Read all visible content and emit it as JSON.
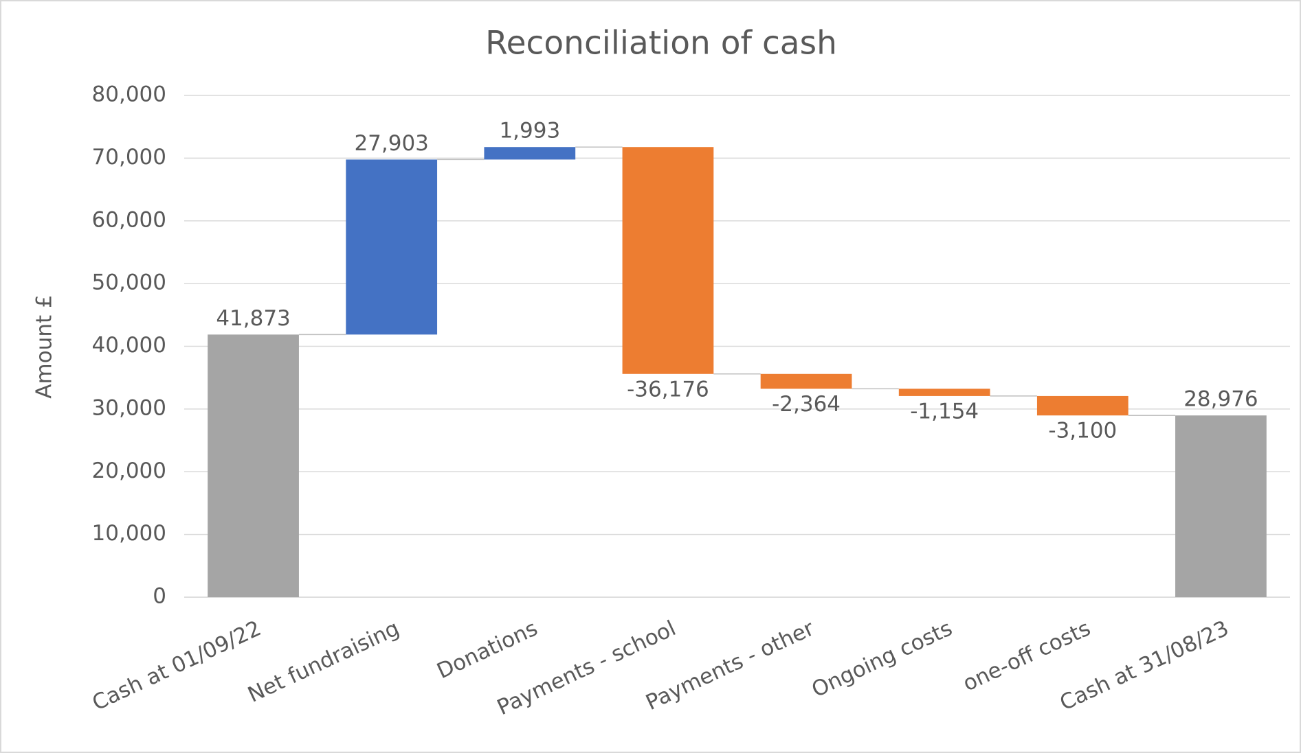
{
  "chart_data": {
    "type": "waterfall",
    "title": "Reconciliation of cash",
    "y_label": "Amount £",
    "categories": [
      "Cash at 01/09/22",
      "Net fundraising",
      "Donations",
      "Payments  - school",
      "Payments - other",
      "Ongoing costs",
      "one-off costs",
      "Cash at 31/08/23"
    ],
    "values": [
      41873,
      27903,
      1993,
      -36176,
      -2364,
      -1154,
      -3100,
      28976
    ],
    "value_labels": [
      "41,873",
      "27,903",
      "1,993",
      "-36,176",
      "-2,364",
      "-1,154",
      "-3,100",
      "28,976"
    ],
    "is_total": [
      true,
      false,
      false,
      false,
      false,
      false,
      false,
      true
    ],
    "colors": {
      "increase": "#4472c4",
      "decrease": "#ed7d31",
      "total": "#a5a5a5"
    },
    "ylim": [
      0,
      80000
    ],
    "yticks": [
      0,
      {
        "value": 10000,
        "label": "10,000"
      },
      {
        "value": 20000,
        "label": "20,000"
      },
      {
        "value": 30000,
        "label": "30,000"
      },
      {
        "value": 40000,
        "label": "40,000"
      },
      {
        "value": 50000,
        "label": "50,000"
      },
      {
        "value": 60000,
        "label": "60,000"
      },
      {
        "value": 70000,
        "label": "70,000"
      },
      {
        "value": 80000,
        "label": "80,000"
      }
    ],
    "grid": true
  }
}
